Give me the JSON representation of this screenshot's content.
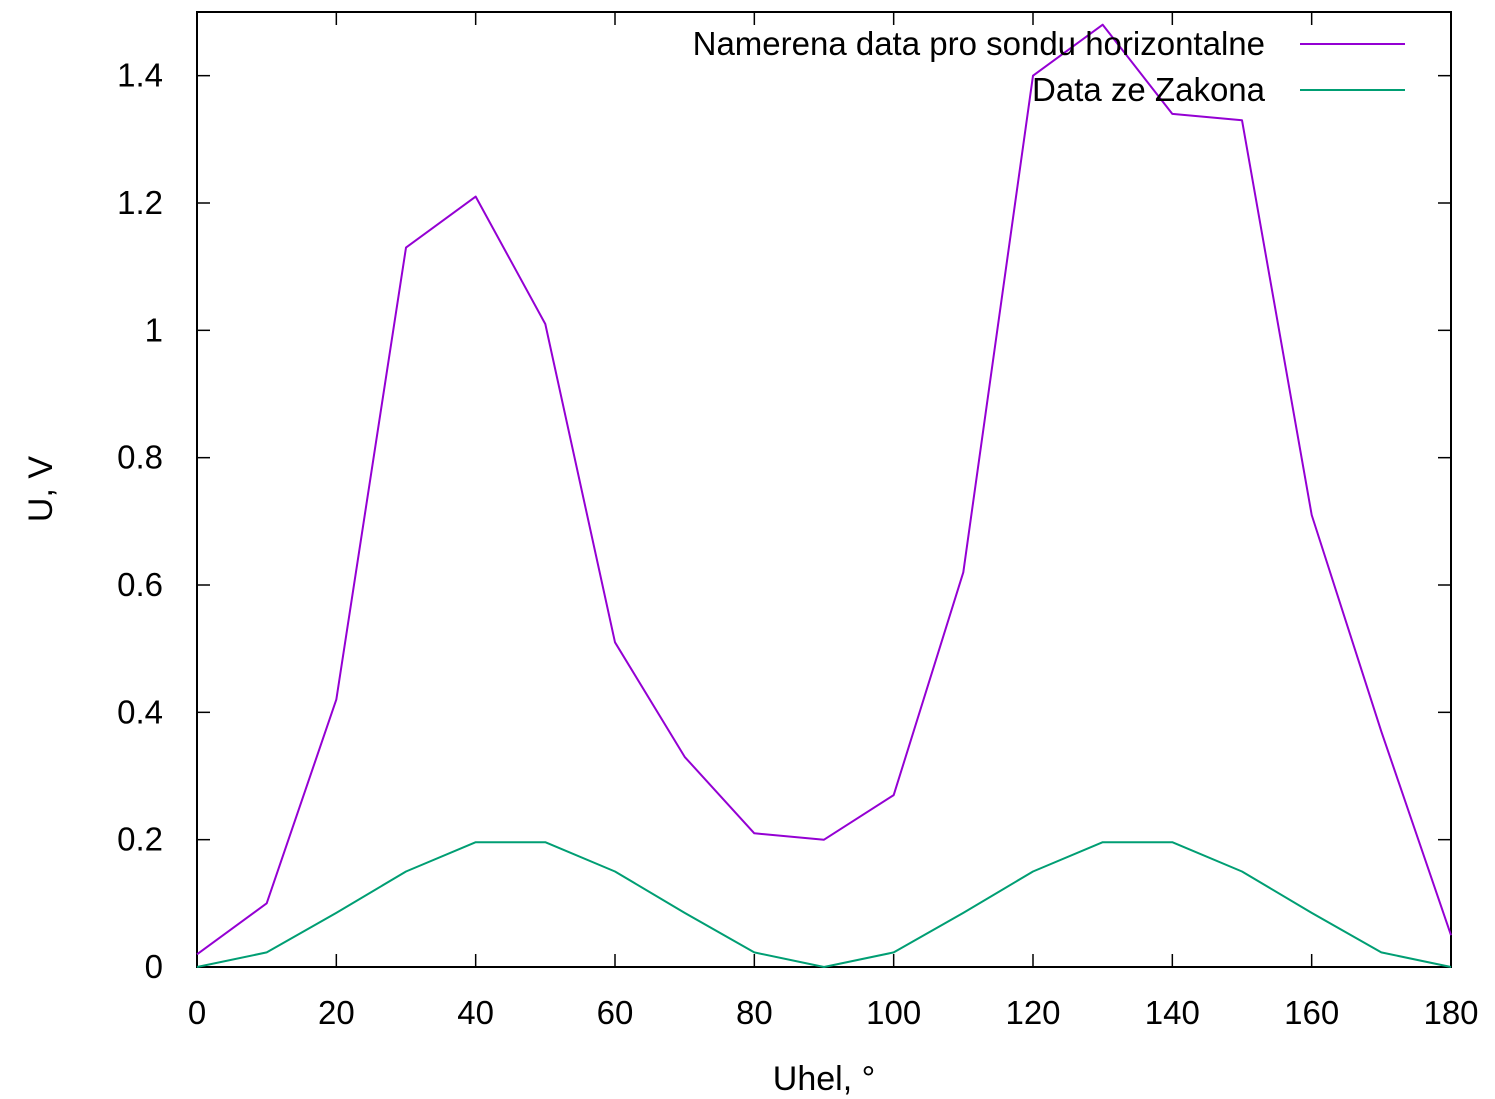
{
  "chart_data": {
    "type": "line",
    "title": "",
    "xlabel": "Uhel, °",
    "ylabel": "U, V",
    "xlim": [
      0,
      180
    ],
    "ylim": [
      0,
      1.5
    ],
    "xticks": [
      0,
      20,
      40,
      60,
      80,
      100,
      120,
      140,
      160,
      180
    ],
    "yticks": [
      0,
      0.2,
      0.4,
      0.6,
      0.8,
      1,
      1.2,
      1.4
    ],
    "xtick_labels": [
      "0",
      "20",
      "40",
      "60",
      "80",
      "100",
      "120",
      "140",
      "160",
      "180"
    ],
    "ytick_labels": [
      "0",
      "0.2",
      "0.4",
      "0.6",
      "0.8",
      "1",
      "1.2",
      "1.4"
    ],
    "grid": false,
    "legend_position": "top-right",
    "x": [
      0,
      10,
      20,
      30,
      40,
      50,
      60,
      70,
      80,
      90,
      100,
      110,
      120,
      130,
      140,
      150,
      160,
      170,
      180
    ],
    "series": [
      {
        "name": "Namerena data pro sondu horizontalne",
        "color": "#9400d3",
        "values": [
          0.02,
          0.1,
          0.42,
          1.13,
          1.21,
          1.01,
          0.51,
          0.33,
          0.21,
          0.2,
          0.27,
          0.62,
          1.4,
          1.48,
          1.34,
          1.33,
          0.71,
          0.37,
          0.05
        ]
      },
      {
        "name": "Data ze Zakona",
        "color": "#009e73",
        "values": [
          0.0,
          0.023,
          0.085,
          0.15,
          0.196,
          0.196,
          0.15,
          0.085,
          0.023,
          0.0,
          0.023,
          0.085,
          0.15,
          0.196,
          0.196,
          0.15,
          0.085,
          0.023,
          0.0
        ]
      }
    ]
  }
}
